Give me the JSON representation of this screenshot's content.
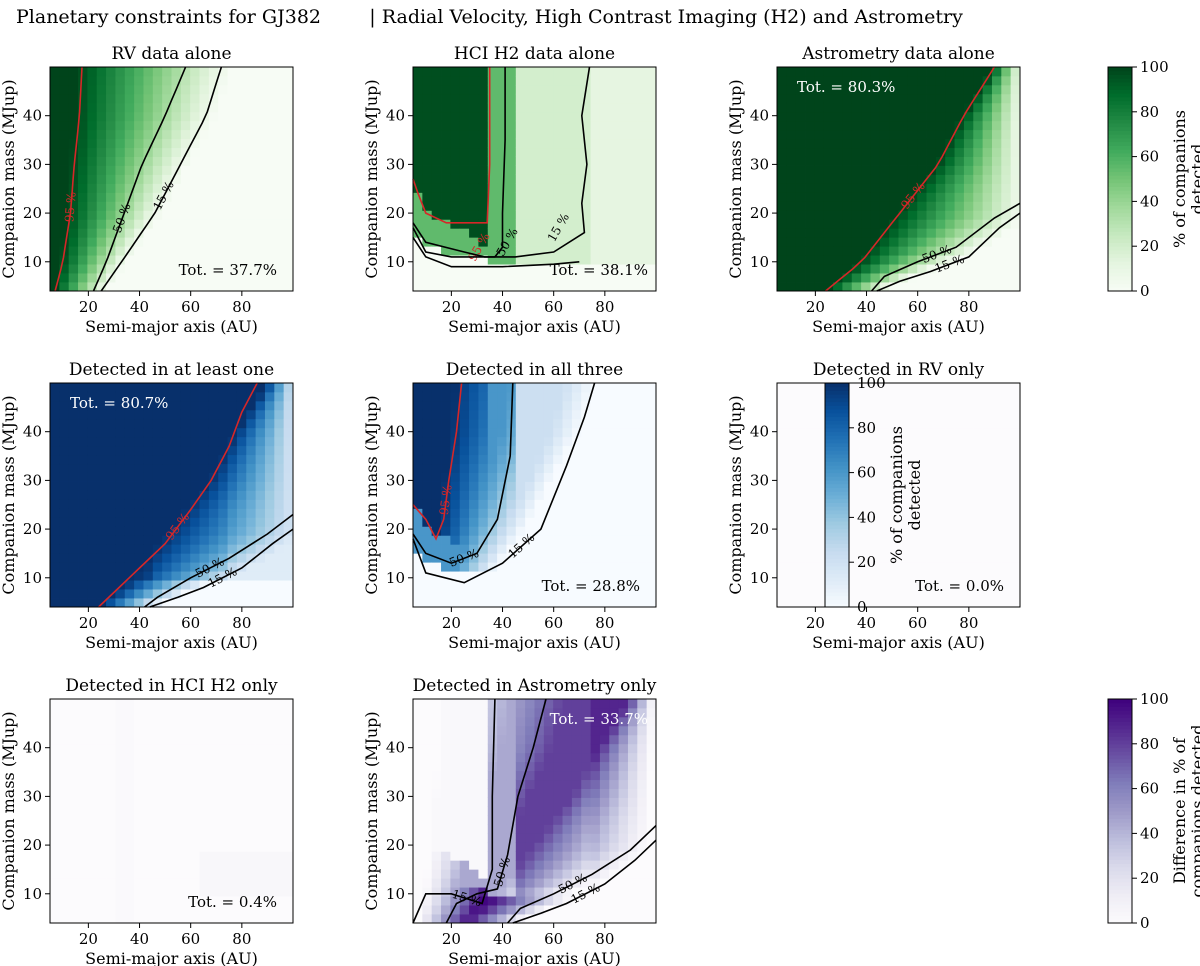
{
  "figure": {
    "title": "Planetary constraints for GJ382        | Radial Velocity, High Contrast Imaging (H2) and Astrometry"
  },
  "chart_data": [
    {
      "type": "heatmap",
      "title": "RV data alone",
      "xlabel": "Semi-major axis (AU)",
      "ylabel": "Companion mass (MJup)",
      "xlim": [
        5,
        100
      ],
      "ylim": [
        4,
        50
      ],
      "xticks": [
        20,
        40,
        60,
        80
      ],
      "yticks": [
        10,
        20,
        30,
        40
      ],
      "total_label": "Tot. = 37.7%",
      "colormap": "greens",
      "contour_labels": [
        "95 %",
        "50 %",
        "15 %"
      ]
    },
    {
      "type": "heatmap",
      "title": "HCI H2 data alone",
      "xlabel": "Semi-major axis (AU)",
      "ylabel": "Companion mass (MJup)",
      "xlim": [
        5,
        100
      ],
      "ylim": [
        4,
        50
      ],
      "xticks": [
        20,
        40,
        60,
        80
      ],
      "yticks": [
        10,
        20,
        30,
        40
      ],
      "total_label": "Tot. = 38.1%",
      "colormap": "greens",
      "contour_labels": [
        "95 %",
        "50 %",
        "15 %"
      ]
    },
    {
      "type": "heatmap",
      "title": "Astrometry data alone",
      "xlabel": "Semi-major axis (AU)",
      "ylabel": "Companion mass (MJup)",
      "xlim": [
        5,
        100
      ],
      "ylim": [
        4,
        50
      ],
      "xticks": [
        20,
        40,
        60,
        80
      ],
      "yticks": [
        10,
        20,
        30,
        40
      ],
      "total_label": "Tot. = 80.3%",
      "colormap": "greens",
      "contour_labels": [
        "95 %",
        "50 %",
        "15 %"
      ]
    },
    {
      "type": "heatmap",
      "title": "Detected in at least one",
      "xlabel": "Semi-major axis (AU)",
      "ylabel": "Companion mass (MJup)",
      "xlim": [
        5,
        100
      ],
      "ylim": [
        4,
        50
      ],
      "xticks": [
        20,
        40,
        60,
        80
      ],
      "yticks": [
        10,
        20,
        30,
        40
      ],
      "total_label": "Tot. = 80.7%",
      "colormap": "blues",
      "contour_labels": [
        "95 %",
        "50 %",
        "15 %"
      ]
    },
    {
      "type": "heatmap",
      "title": "Detected in all three",
      "xlabel": "Semi-major axis (AU)",
      "ylabel": "Companion mass (MJup)",
      "xlim": [
        5,
        100
      ],
      "ylim": [
        4,
        50
      ],
      "xticks": [
        20,
        40,
        60,
        80
      ],
      "yticks": [
        10,
        20,
        30,
        40
      ],
      "total_label": "Tot. = 28.8%",
      "colormap": "blues",
      "contour_labels": [
        "95 %",
        "50 %",
        "15 %"
      ]
    },
    {
      "type": "heatmap",
      "title": "Detected in RV only",
      "xlabel": "Semi-major axis (AU)",
      "ylabel": "Companion mass (MJup)",
      "xlim": [
        5,
        100
      ],
      "ylim": [
        4,
        50
      ],
      "xticks": [
        20,
        40,
        60,
        80
      ],
      "yticks": [
        10,
        20,
        30,
        40
      ],
      "total_label": "Tot. = 0.0%",
      "colormap": "purples",
      "contour_labels": []
    },
    {
      "type": "heatmap",
      "title": "Detected in HCI H2 only",
      "xlabel": "Semi-major axis (AU)",
      "ylabel": "Companion mass (MJup)",
      "xlim": [
        5,
        100
      ],
      "ylim": [
        4,
        50
      ],
      "xticks": [
        20,
        40,
        60,
        80
      ],
      "yticks": [
        10,
        20,
        30,
        40
      ],
      "total_label": "Tot. = 0.4%",
      "colormap": "purples",
      "contour_labels": []
    },
    {
      "type": "heatmap",
      "title": "Detected in Astrometry only",
      "xlabel": "Semi-major axis (AU)",
      "ylabel": "Companion mass (MJup)",
      "xlim": [
        5,
        100
      ],
      "ylim": [
        4,
        50
      ],
      "xticks": [
        20,
        40,
        60,
        80
      ],
      "yticks": [
        10,
        20,
        30,
        40
      ],
      "total_label": "Tot. = 33.7%",
      "colormap": "purples",
      "contour_labels": [
        "15 %",
        "50 %",
        "50 %",
        "15 %"
      ]
    }
  ],
  "colorbars": [
    {
      "label": "% of companions detected",
      "colormap": "greens",
      "range": [
        0,
        100
      ],
      "ticks": [
        "0",
        "20",
        "40",
        "60",
        "80",
        "100"
      ]
    },
    {
      "label": "% of companions detected",
      "colormap": "blues",
      "range": [
        0,
        100
      ],
      "ticks": [
        "0",
        "20",
        "40",
        "60",
        "80",
        "100"
      ]
    },
    {
      "label": "Difference in % of companions detected",
      "colormap": "purples",
      "range": [
        0,
        100
      ],
      "ticks": [
        "0",
        "20",
        "40",
        "60",
        "80",
        "100"
      ]
    }
  ],
  "colors": {
    "contour_95": "#d62728",
    "contour_other": "#000000",
    "greens": [
      "#f7fcf5",
      "#e5f5e0",
      "#c7e9c0",
      "#a1d99b",
      "#74c476",
      "#41ab5d",
      "#238b45",
      "#006d2c",
      "#00441b"
    ],
    "blues": [
      "#f7fbff",
      "#deebf7",
      "#c6dbef",
      "#9ecae1",
      "#6baed6",
      "#4292c6",
      "#2171b5",
      "#08519c",
      "#08306b"
    ],
    "purples": [
      "#fcfbfd",
      "#efedf5",
      "#dadaeb",
      "#bcbddc",
      "#9e9ac8",
      "#807dba",
      "#6a51a3",
      "#54278f",
      "#3f007d"
    ]
  }
}
